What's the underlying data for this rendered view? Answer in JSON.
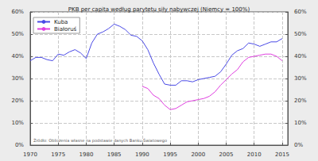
{
  "chart_data": {
    "type": "line",
    "title": "PKB per capita według parytetu siły nabywczej (Niemcy = 100%)",
    "annotations": [
      "Źródło: Obliczenia własne na podstawie danych Banku Światowego"
    ],
    "x": [
      1970,
      1971,
      1972,
      1973,
      1974,
      1975,
      1976,
      1977,
      1978,
      1979,
      1980,
      1981,
      1982,
      1983,
      1984,
      1985,
      1986,
      1987,
      1988,
      1989,
      1990,
      1991,
      1992,
      1993,
      1994,
      1995,
      1996,
      1997,
      1998,
      1999,
      2000,
      2001,
      2002,
      2003,
      2004,
      2005,
      2006,
      2007,
      2008,
      2009,
      2010,
      2011,
      2012,
      2013,
      2014,
      2015
    ],
    "series": [
      {
        "name": "Kuba",
        "color": "#4a4ae6",
        "values": [
          38,
          39.5,
          39.5,
          38.5,
          38,
          41,
          40.5,
          42,
          43,
          41.5,
          39,
          46,
          50,
          51,
          52.5,
          54.5,
          53.5,
          52,
          49.5,
          49,
          47,
          43,
          37,
          32,
          27.5,
          27,
          27,
          29,
          29,
          28.5,
          29.5,
          30,
          30.5,
          31,
          33,
          36.5,
          40.5,
          42.5,
          43.5,
          46,
          45.5,
          44.5,
          45.5,
          46.5,
          46.5,
          48
        ]
      },
      {
        "name": "Białoruś",
        "color": "#e040e0",
        "values": [
          null,
          null,
          null,
          null,
          null,
          null,
          null,
          null,
          null,
          null,
          null,
          null,
          null,
          null,
          null,
          null,
          null,
          null,
          null,
          null,
          26.5,
          25.5,
          22.5,
          21,
          18,
          16,
          16.5,
          18,
          19.5,
          20,
          20.5,
          21,
          22,
          24,
          27,
          29.5,
          32,
          34,
          37.5,
          39.5,
          40,
          40.5,
          41,
          41,
          40,
          38
        ]
      }
    ],
    "xlim": [
      1970,
      2016
    ],
    "xticks": [
      1970,
      1975,
      1980,
      1985,
      1990,
      1995,
      2000,
      2005,
      2010,
      2015
    ],
    "ylim": [
      0,
      60
    ],
    "yticks": [
      {
        "value": 0,
        "label": "0%"
      },
      {
        "value": 10,
        "label": "10%"
      },
      {
        "value": 20,
        "label": "20%"
      },
      {
        "value": 30,
        "label": "30%"
      },
      {
        "value": 40,
        "label": "40%"
      },
      {
        "value": 50,
        "label": "50%"
      },
      {
        "value": 60,
        "label": "60%"
      }
    ],
    "y2lim": [
      0,
      60
    ],
    "y2ticks": [
      {
        "value": 0,
        "label": "0%"
      },
      {
        "value": 10,
        "label": "10%"
      },
      {
        "value": 20,
        "label": "20%"
      },
      {
        "value": 30,
        "label": "30%"
      },
      {
        "value": 40,
        "label": "40%"
      },
      {
        "value": 50,
        "label": "50%"
      },
      {
        "value": 60,
        "label": "60%"
      }
    ],
    "grid": true,
    "legend": "upper left"
  }
}
